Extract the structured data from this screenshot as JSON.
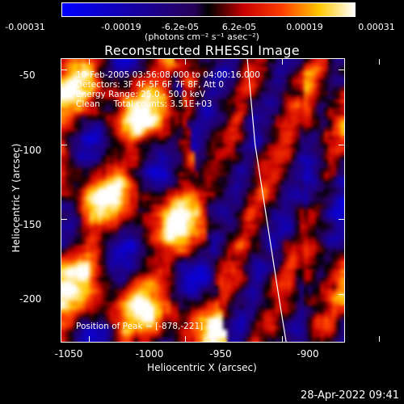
{
  "colorbar": {
    "ticks": [
      "-0.00031",
      "-0.00019",
      "-6.2e-05",
      "6.2e-05",
      "0.00019",
      "0.00031"
    ],
    "unit": "(photons cm⁻² s⁻¹ asec⁻²)"
  },
  "chart_data": {
    "type": "heatmap",
    "title": "Reconstructed RHESSI Image",
    "xlabel": "Heliocentric X (arcsec)",
    "ylabel": "Heliocentric Y (arcsec)",
    "xlim": [
      -1064,
      -918
    ],
    "ylim": [
      -232,
      -43
    ],
    "xticks": [
      -1050,
      -1000,
      -950,
      -900
    ],
    "yticks": [
      -50,
      -100,
      -150,
      -200
    ],
    "xtick_labels": [
      "-1050",
      "-1000",
      "-950",
      "-900"
    ],
    "ytick_labels": [
      "-50",
      "-100",
      "-150",
      "-200"
    ],
    "zlim": [
      -0.00031,
      0.00031
    ],
    "colormap": "blue-black-red-yellow-white",
    "limb": [
      [
        -968,
        -43
      ],
      [
        -964,
        -100
      ],
      [
        -958,
        -150
      ],
      [
        -952,
        -200
      ],
      [
        -948,
        -232
      ]
    ],
    "peak": [
      -878,
      -221
    ]
  },
  "info": {
    "line1": "10-Feb-2005 03:56:08.000 to 04:00:16.000",
    "line2": "Detectors: 3F 4F 5F 6F 7F 8F, Att 0",
    "line3": "Energy Range: 25.0 - 50.0 keV",
    "line4": "Clean     Total counts: 3.51E+03",
    "peak_text": "Position of Peak = [-878,-221]"
  },
  "footer": "28-Apr-2022 09:41"
}
